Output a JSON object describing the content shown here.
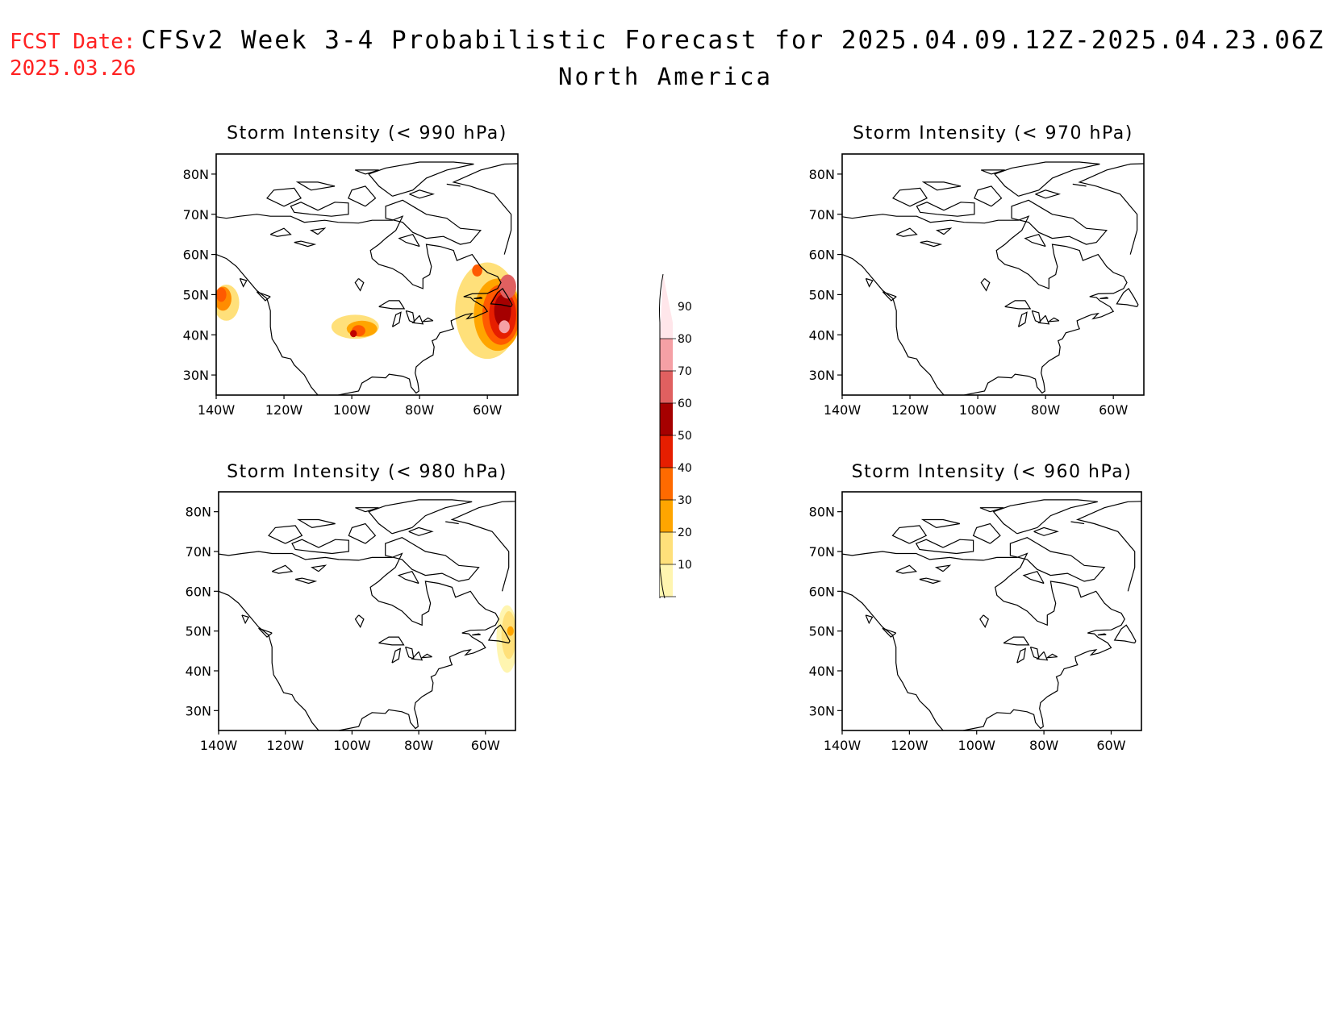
{
  "header": {
    "fcst_label": "FCST Date:",
    "fcst_date": "2025.03.26",
    "title": "CFSv2 Week 3-4 Probabilistic Forecast for 2025.04.09.12Z-2025.04.23.06Z",
    "region": "North America"
  },
  "axes": {
    "lat_ticks": [
      "80N",
      "70N",
      "60N",
      "50N",
      "40N",
      "30N"
    ],
    "lon_ticks": [
      "140W",
      "120W",
      "100W",
      "80W",
      "60W"
    ],
    "lat_range": [
      25,
      85
    ],
    "lon_range": [
      -140,
      -51
    ]
  },
  "colorbar": {
    "labels": [
      "10",
      "20",
      "30",
      "40",
      "50",
      "60",
      "70",
      "80",
      "90"
    ],
    "colors": [
      "#fff5b0",
      "#ffe07a",
      "#ffa500",
      "#ff6a00",
      "#e61e00",
      "#a50000",
      "#e06060",
      "#f5a0a5",
      "#ffe6ea"
    ]
  },
  "panels": [
    {
      "id": "p990",
      "title": "Storm Intensity (< 990 hPa)",
      "blobs": [
        {
          "lon": -137,
          "lat": 48,
          "rlon": 3.8,
          "rlat": 4.5,
          "color": "#ffe07a"
        },
        {
          "lon": -138,
          "lat": 49,
          "rlon": 2.5,
          "rlat": 3,
          "color": "#ff8c00"
        },
        {
          "lon": -138.5,
          "lat": 50,
          "rlon": 1.5,
          "rlat": 1.8,
          "color": "#ff5a00"
        },
        {
          "lon": -99,
          "lat": 42,
          "rlon": 7,
          "rlat": 3,
          "color": "#ffe07a"
        },
        {
          "lon": -97,
          "lat": 41.5,
          "rlon": 4.5,
          "rlat": 2,
          "color": "#ffa500"
        },
        {
          "lon": -98,
          "lat": 41,
          "rlon": 2,
          "rlat": 1.4,
          "color": "#ff5a00"
        },
        {
          "lon": -99.5,
          "lat": 40.3,
          "rlon": 1,
          "rlat": 0.9,
          "color": "#c00000"
        },
        {
          "lon": -60,
          "lat": 46,
          "rlon": 9.5,
          "rlat": 12,
          "color": "#ffe07a"
        },
        {
          "lon": -57,
          "lat": 45,
          "rlon": 7,
          "rlat": 9,
          "color": "#ffa500"
        },
        {
          "lon": -56,
          "lat": 45,
          "rlon": 5.5,
          "rlat": 7.5,
          "color": "#ff5a00"
        },
        {
          "lon": -55.5,
          "lat": 45,
          "rlon": 4,
          "rlat": 6,
          "color": "#e61e00"
        },
        {
          "lon": -55.5,
          "lat": 46,
          "rlon": 2.5,
          "rlat": 4,
          "color": "#a50000"
        },
        {
          "lon": -54,
          "lat": 52,
          "rlon": 2.5,
          "rlat": 3,
          "color": "#e06060"
        },
        {
          "lon": -55,
          "lat": 42,
          "rlon": 1.6,
          "rlat": 1.6,
          "color": "#f5a0a5"
        },
        {
          "lon": -63,
          "lat": 56,
          "rlon": 1.5,
          "rlat": 1.5,
          "color": "#ff5a00"
        }
      ]
    },
    {
      "id": "p970",
      "title": "Storm Intensity (< 970 hPa)",
      "blobs": []
    },
    {
      "id": "p980",
      "title": "Storm Intensity (< 980 hPa)",
      "blobs": [
        {
          "lon": -53.5,
          "lat": 48,
          "rlon": 3.2,
          "rlat": 8.5,
          "color": "#fff5b0"
        },
        {
          "lon": -53,
          "lat": 49,
          "rlon": 2.2,
          "rlat": 6,
          "color": "#ffe07a"
        },
        {
          "lon": -52.5,
          "lat": 50,
          "rlon": 1,
          "rlat": 1.2,
          "color": "#ffa500"
        }
      ]
    },
    {
      "id": "p960",
      "title": "Storm Intensity (< 960 hPa)",
      "blobs": []
    }
  ]
}
